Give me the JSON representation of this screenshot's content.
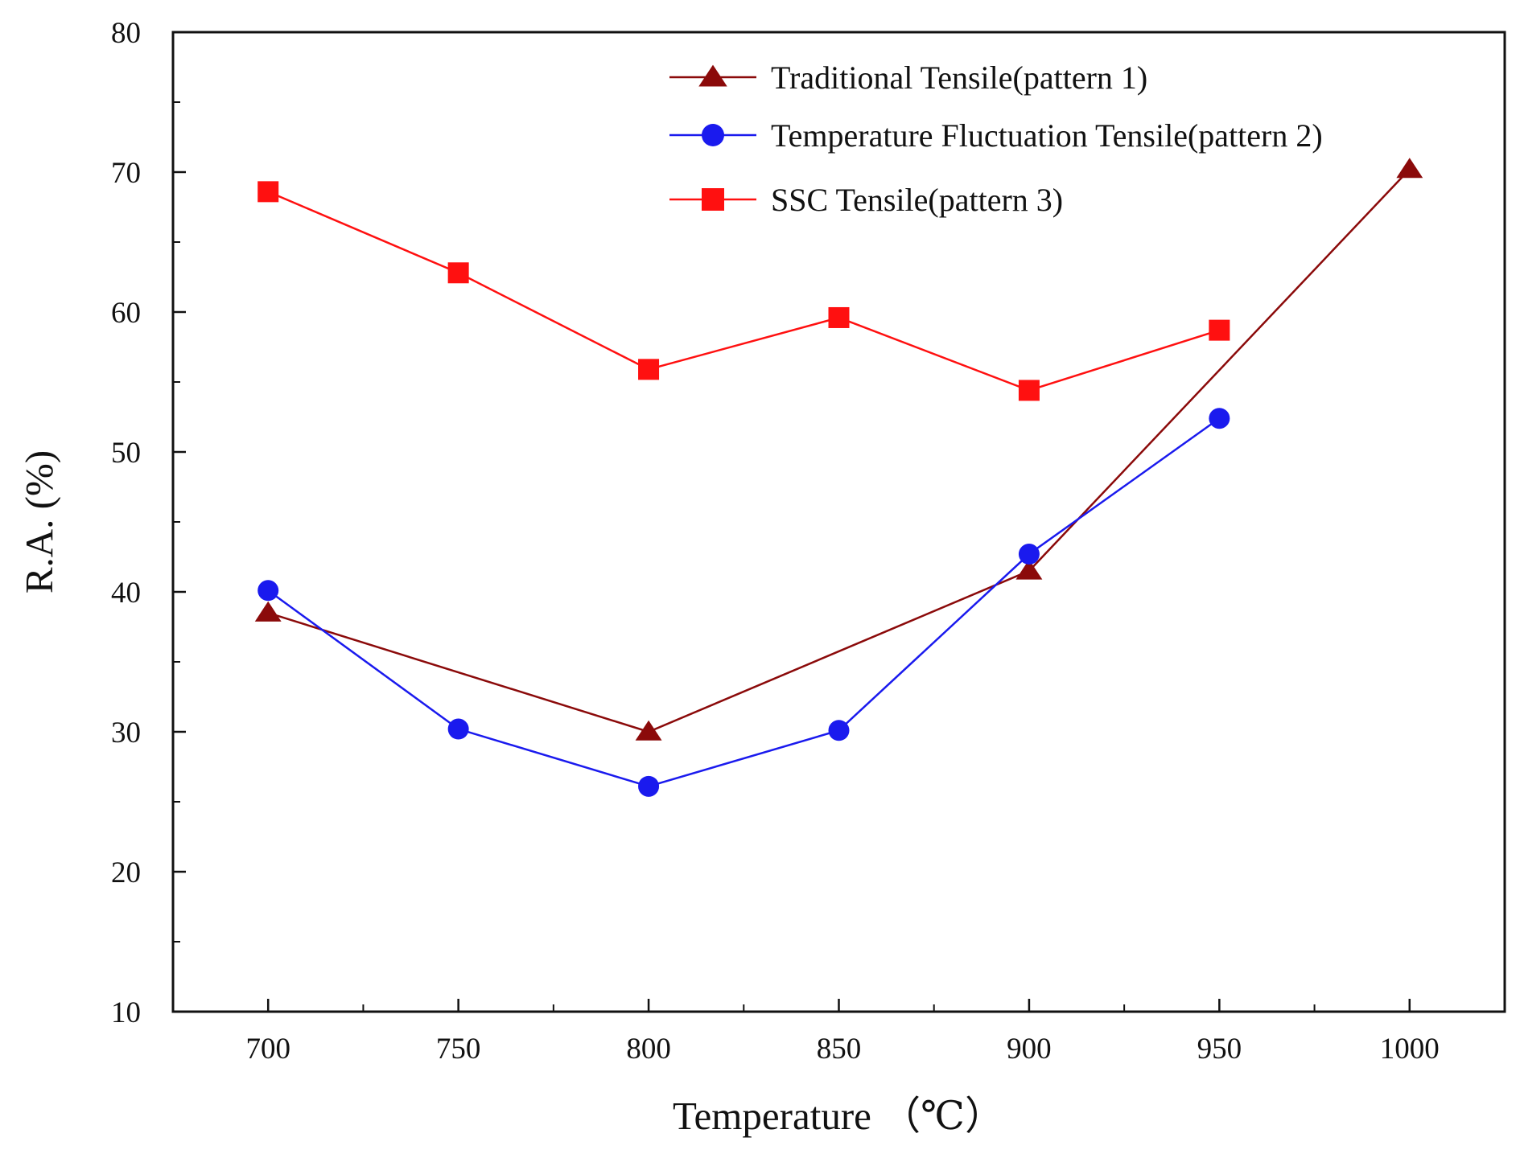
{
  "chart_data": {
    "type": "line",
    "title": "",
    "xlabel": "Temperature （℃）",
    "ylabel": "R.A. (%)",
    "xlim": [
      675,
      1025
    ],
    "ylim": [
      10,
      80
    ],
    "x_ticks": [
      700,
      750,
      800,
      850,
      900,
      950,
      1000
    ],
    "y_ticks": [
      10,
      20,
      30,
      40,
      50,
      60,
      70,
      80
    ],
    "grid": false,
    "legend_position": "top-right",
    "series": [
      {
        "name": "Traditional Tensile(pattern 1)",
        "marker": "triangle",
        "color": "#8b0a0a",
        "x": [
          700,
          800,
          900,
          1000
        ],
        "y": [
          38.5,
          30.0,
          41.5,
          70.2
        ]
      },
      {
        "name": "Temperature Fluctuation Tensile(pattern 2)",
        "marker": "circle",
        "color": "#1a1aee",
        "x": [
          700,
          750,
          800,
          850,
          900,
          950
        ],
        "y": [
          40.1,
          30.2,
          26.1,
          30.1,
          42.7,
          52.4
        ]
      },
      {
        "name": "SSC Tensile(pattern 3)",
        "marker": "square",
        "color": "#ff1010",
        "x": [
          700,
          750,
          800,
          850,
          900,
          950
        ],
        "y": [
          68.6,
          62.8,
          55.9,
          59.6,
          54.4,
          58.7
        ]
      }
    ]
  }
}
